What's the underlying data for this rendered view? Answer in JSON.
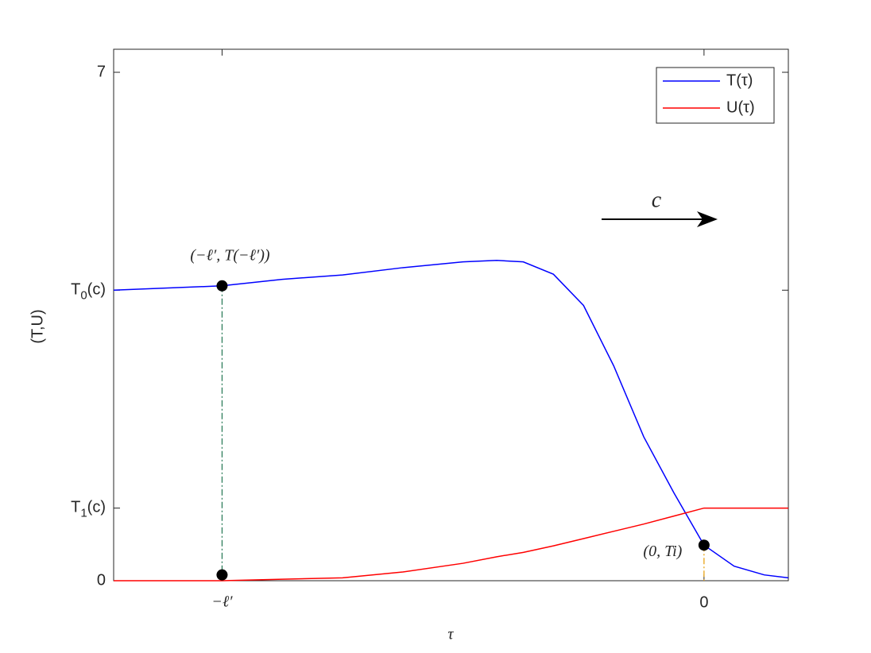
{
  "chart_data": {
    "type": "line",
    "x_label": "τ",
    "y_label": "(T,U)",
    "xlim": [
      -9.8,
      1.4
    ],
    "ylim": [
      0,
      7
    ],
    "xticks": [
      {
        "value": -8,
        "label": "−ℓ′"
      },
      0
    ],
    "yticks": [
      0,
      {
        "value": 1,
        "label": "T1(c)"
      },
      {
        "value": 4,
        "label": "T0(c)"
      },
      7
    ],
    "x": [
      -9.8,
      -8,
      -7,
      -6,
      -5,
      -4,
      -3.44,
      -3,
      -2.5,
      -2,
      -1.5,
      -1,
      -0.5,
      0,
      0.5,
      1,
      1.4
    ],
    "series": [
      {
        "name": "T(τ)",
        "color": "#0000ff",
        "values": [
          4.0,
          4.06,
          4.15,
          4.21,
          4.31,
          4.39,
          4.41,
          4.39,
          4.22,
          3.79,
          2.96,
          1.98,
          1.21,
          0.49,
          0.2,
          0.08,
          0.04
        ]
      },
      {
        "name": "U(τ)",
        "color": "#ff0000",
        "values": [
          0,
          0,
          0.02,
          0.04,
          0.12,
          0.24,
          0.33,
          0.39,
          0.48,
          0.58,
          0.68,
          0.78,
          0.89,
          1.0,
          1.0,
          1.0,
          1.0
        ]
      }
    ],
    "points": [
      {
        "x": -8,
        "y": 4.06,
        "label": "(−ℓ′, T(−ℓ′))"
      },
      {
        "x": -8,
        "y": 0.08
      },
      {
        "x": 0,
        "y": 0.49,
        "label": "(0, Ti)"
      }
    ],
    "annotation": "c",
    "legend": "upper right"
  }
}
